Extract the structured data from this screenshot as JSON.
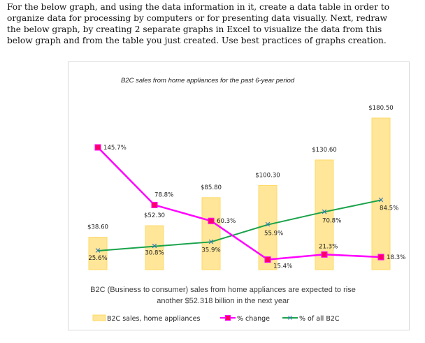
{
  "instructions": "For the below graph, and using the data information in it, create a data table in order to organize data for processing by computers or for presenting data visually. Next, redraw the below graph, by creating 2 separate graphs in Excel to visualize the data from this below graph and from the table you just created. Use best practices of graphs creation.",
  "chart_data": {
    "type": "bar",
    "title": "B2C sales from home appliances for the past 6-year period",
    "categories": [
      "",
      "",
      "",
      "",
      "",
      ""
    ],
    "series": [
      {
        "name": "B2C sales, home appliances",
        "type": "bar",
        "values": [
          38.6,
          52.3,
          85.8,
          100.3,
          130.6,
          180.5
        ],
        "labels": [
          "$38.60",
          "$52.30",
          "$85.80",
          "$100.30",
          "$130.60",
          "$180.50"
        ]
      },
      {
        "name": "% change",
        "type": "line",
        "values": [
          145.7,
          78.8,
          60.3,
          15.4,
          21.3,
          18.3
        ],
        "labels": [
          "145.7%",
          "78.8%",
          "60.3%",
          "15.4%",
          "21.3%",
          "18.3%"
        ]
      },
      {
        "name": "% of all B2C",
        "type": "line",
        "values": [
          25.6,
          30.8,
          35.9,
          55.9,
          70.8,
          84.5
        ],
        "labels": [
          "25.6%",
          "30.8%",
          "35.9%",
          "55.9%",
          "70.8%",
          "84.5%"
        ]
      }
    ],
    "annotation": [
      "B2C (Business to consumer) sales from home appliances are expected to rise",
      "another $52.318 billion in the next year"
    ],
    "grid": false,
    "legend": "bottom",
    "colors": {
      "bar_fill": "#ffe699",
      "bar_edge": "#ffd966",
      "change_line": "#ff00ff",
      "change_marker": "#ff0066",
      "share_line": "#1aa34a",
      "share_marker": "#2e75b6"
    }
  }
}
